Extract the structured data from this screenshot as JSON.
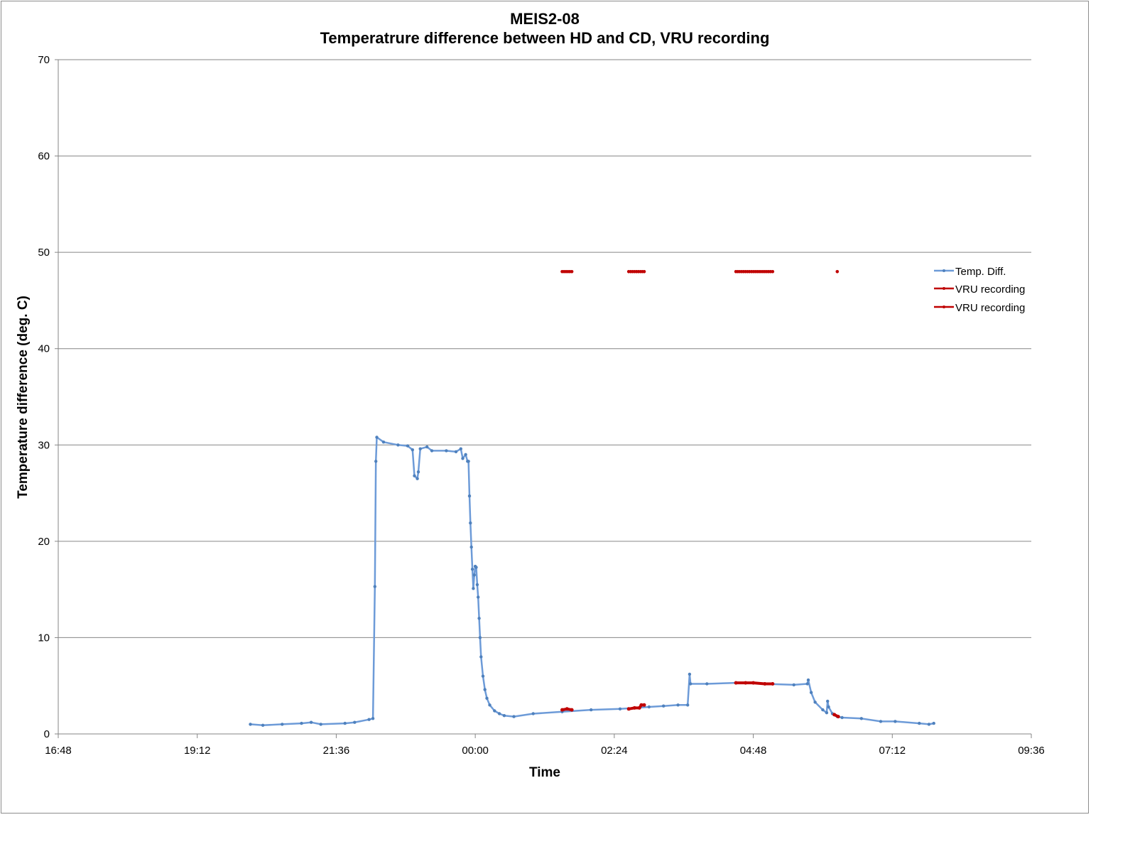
{
  "chart_data": {
    "type": "line",
    "title": "MEIS2-08",
    "subtitle": "Temperatrure difference between HD and CD, VRU recording",
    "xlabel": "Time",
    "ylabel": "Temperature difference (deg. C)",
    "x_ticks": [
      "16:48",
      "19:12",
      "21:36",
      "00:00",
      "02:24",
      "04:48",
      "07:12",
      "09:36"
    ],
    "y_ticks": [
      "0",
      "10",
      "20",
      "30",
      "40",
      "50",
      "60",
      "70"
    ],
    "xlim": [
      "16:48",
      "09:36 (+1 day)"
    ],
    "ylim": [
      0,
      70
    ],
    "grid": "horizontal major gridlines",
    "legend_position": "right",
    "colors": {
      "temp": "#6d9bd8",
      "vru": "#c00000",
      "grid": "#868686",
      "axis": "#868686"
    },
    "series": [
      {
        "name": "Temp. Diff.",
        "style": "line with small markers",
        "points": [
          [
            "20:07",
            1.0
          ],
          [
            "20:20",
            0.9
          ],
          [
            "20:40",
            1.0
          ],
          [
            "21:00",
            1.1
          ],
          [
            "21:10",
            1.2
          ],
          [
            "21:20",
            1.0
          ],
          [
            "21:45",
            1.1
          ],
          [
            "21:55",
            1.2
          ],
          [
            "22:10",
            1.5
          ],
          [
            "22:14",
            1.6
          ],
          [
            "22:16",
            15.3
          ],
          [
            "22:17",
            28.3
          ],
          [
            "22:18",
            30.8
          ],
          [
            "22:25",
            30.3
          ],
          [
            "22:40",
            30.0
          ],
          [
            "22:50",
            29.9
          ],
          [
            "22:55",
            29.5
          ],
          [
            "22:57",
            26.8
          ],
          [
            "23:00",
            26.5
          ],
          [
            "23:01",
            27.2
          ],
          [
            "23:03",
            29.6
          ],
          [
            "23:10",
            29.8
          ],
          [
            "23:15",
            29.4
          ],
          [
            "23:30",
            29.4
          ],
          [
            "23:40",
            29.3
          ],
          [
            "23:45",
            29.6
          ],
          [
            "23:47",
            28.6
          ],
          [
            "23:50",
            29.0
          ],
          [
            "23:52",
            28.3
          ],
          [
            "23:53",
            28.3
          ],
          [
            "23:54",
            24.7
          ],
          [
            "23:55",
            21.9
          ],
          [
            "23:56",
            19.4
          ],
          [
            "23:57",
            17.1
          ],
          [
            "23:58",
            15.1
          ],
          [
            "23:59",
            16.5
          ],
          [
            "00:00",
            17.4
          ],
          [
            "00:01",
            17.3
          ],
          [
            "00:02",
            15.5
          ],
          [
            "00:03",
            14.2
          ],
          [
            "00:04",
            12.0
          ],
          [
            "00:05",
            10.0
          ],
          [
            "00:06",
            8.0
          ],
          [
            "00:08",
            6.0
          ],
          [
            "00:10",
            4.6
          ],
          [
            "00:12",
            3.7
          ],
          [
            "00:15",
            3.0
          ],
          [
            "00:20",
            2.4
          ],
          [
            "00:25",
            2.1
          ],
          [
            "00:30",
            1.9
          ],
          [
            "00:40",
            1.8
          ],
          [
            "01:00",
            2.1
          ],
          [
            "01:30",
            2.3
          ],
          [
            "02:00",
            2.5
          ],
          [
            "02:30",
            2.6
          ],
          [
            "03:00",
            2.8
          ],
          [
            "03:15",
            2.9
          ],
          [
            "03:30",
            3.0
          ],
          [
            "03:40",
            3.0
          ],
          [
            "03:42",
            6.2
          ],
          [
            "03:43",
            5.2
          ],
          [
            "04:00",
            5.2
          ],
          [
            "04:30",
            5.3
          ],
          [
            "04:48",
            5.3
          ],
          [
            "05:00",
            5.2
          ],
          [
            "05:30",
            5.1
          ],
          [
            "05:44",
            5.2
          ],
          [
            "05:45",
            5.6
          ],
          [
            "05:48",
            4.3
          ],
          [
            "05:52",
            3.3
          ],
          [
            "06:00",
            2.5
          ],
          [
            "06:04",
            2.2
          ],
          [
            "06:05",
            3.4
          ],
          [
            "06:06",
            2.8
          ],
          [
            "06:10",
            2.1
          ],
          [
            "06:15",
            1.8
          ],
          [
            "06:20",
            1.7
          ],
          [
            "06:40",
            1.6
          ],
          [
            "07:00",
            1.3
          ],
          [
            "07:15",
            1.3
          ],
          [
            "07:40",
            1.1
          ],
          [
            "07:50",
            1.0
          ],
          [
            "07:55",
            1.1
          ]
        ]
      },
      {
        "name": "VRU recording",
        "style": "markers at 48",
        "points": [
          [
            "01:30",
            48
          ],
          [
            "01:32",
            48
          ],
          [
            "01:34",
            48
          ],
          [
            "01:36",
            48
          ],
          [
            "01:38",
            48
          ],
          [
            "01:40",
            48
          ],
          [
            "02:39",
            48
          ],
          [
            "02:41",
            48
          ],
          [
            "02:43",
            48
          ],
          [
            "02:45",
            48
          ],
          [
            "02:47",
            48
          ],
          [
            "02:49",
            48
          ],
          [
            "02:51",
            48
          ],
          [
            "02:53",
            48
          ],
          [
            "02:55",
            48
          ],
          [
            "04:30",
            48
          ],
          [
            "04:32",
            48
          ],
          [
            "04:34",
            48
          ],
          [
            "04:36",
            48
          ],
          [
            "04:38",
            48
          ],
          [
            "04:40",
            48
          ],
          [
            "04:42",
            48
          ],
          [
            "04:44",
            48
          ],
          [
            "04:46",
            48
          ],
          [
            "04:48",
            48
          ],
          [
            "04:50",
            48
          ],
          [
            "04:52",
            48
          ],
          [
            "04:54",
            48
          ],
          [
            "04:56",
            48
          ],
          [
            "04:58",
            48
          ],
          [
            "05:00",
            48
          ],
          [
            "05:02",
            48
          ],
          [
            "05:04",
            48
          ],
          [
            "05:06",
            48
          ],
          [
            "05:08",
            48
          ],
          [
            "06:15",
            48
          ]
        ]
      },
      {
        "name": "VRU recording",
        "style": "thick line segments on temperature curve",
        "segments": [
          [
            [
              "01:30",
              2.5
            ],
            [
              "01:35",
              2.6
            ],
            [
              "01:40",
              2.5
            ]
          ],
          [
            [
              "02:39",
              2.6
            ],
            [
              "02:45",
              2.7
            ],
            [
              "02:50",
              2.7
            ],
            [
              "02:52",
              3.0
            ],
            [
              "02:55",
              3.0
            ]
          ],
          [
            [
              "04:30",
              5.3
            ],
            [
              "04:40",
              5.3
            ],
            [
              "04:48",
              5.3
            ],
            [
              "05:00",
              5.2
            ],
            [
              "05:08",
              5.2
            ]
          ],
          [
            [
              "06:12",
              2.0
            ],
            [
              "06:16",
              1.8
            ]
          ]
        ]
      }
    ]
  }
}
